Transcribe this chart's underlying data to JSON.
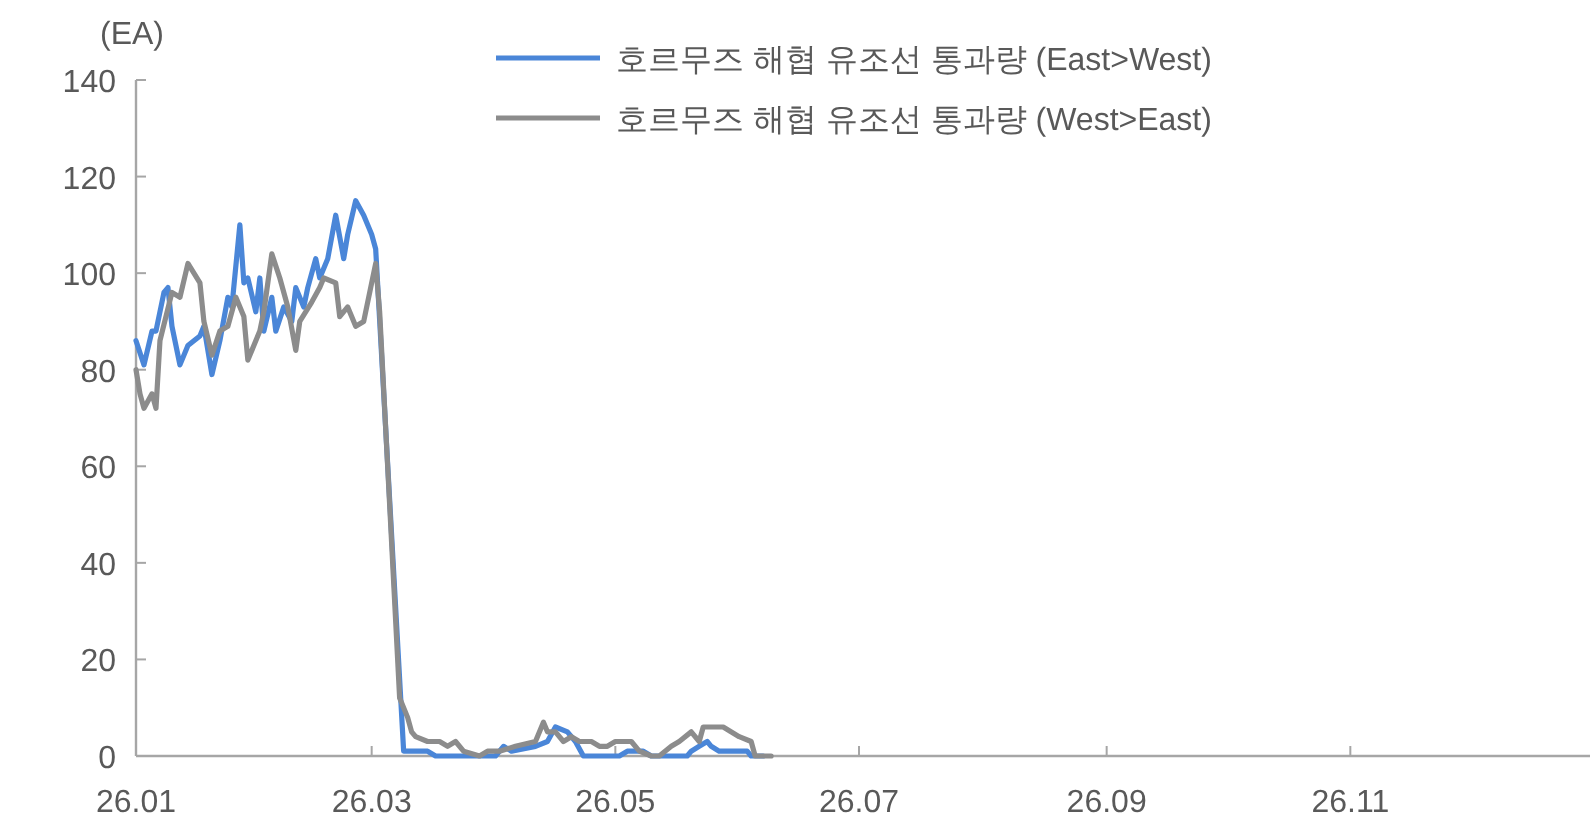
{
  "chart_data": {
    "type": "line",
    "ylabel": "(EA)",
    "xlim": [
      "--01-01",
      "--12-31"
    ],
    "xticks": [
      {
        "value": "--01-01",
        "label": "26.01"
      },
      {
        "value": "--03-01",
        "label": "26.03"
      },
      {
        "value": "--05-01",
        "label": "26.05"
      },
      {
        "value": "--07-01",
        "label": "26.07"
      },
      {
        "value": "--09-01",
        "label": "26.09"
      },
      {
        "value": "--11-01",
        "label": "26.11"
      }
    ],
    "ylim": [
      0,
      140
    ],
    "yticks": [
      0,
      20,
      40,
      60,
      80,
      100,
      120,
      140
    ],
    "grid": false,
    "legend": "top",
    "marker": "none",
    "line_style": "solid",
    "series": [
      {
        "name": "호르무즈 해협 유조선 통과량 (East>West)",
        "color": "#4a86d8",
        "x": [
          "--01-01",
          "--01-03",
          "--01-05",
          "--01-06",
          "--01-08",
          "--01-09",
          "--01-10",
          "--01-12",
          "--01-14",
          "--01-17",
          "--01-18",
          "--01-20",
          "--01-22",
          "--01-24",
          "--01-25",
          "--01-27",
          "--01-28",
          "--01-29",
          "--01-31",
          "--02-01",
          "--02-02",
          "--02-04",
          "--02-05",
          "--02-07",
          "--02-09",
          "--02-10",
          "--02-12",
          "--02-13",
          "--02-15",
          "--02-16",
          "--02-18",
          "--02-20",
          "--02-22",
          "--02-23",
          "--02-25",
          "--02-27",
          "--03-01",
          "--03-02",
          "--03-09",
          "--03-15",
          "--03-17",
          "--04-01",
          "--04-03",
          "--04-05",
          "--04-11",
          "--04-14",
          "--04-16",
          "--04-19",
          "--04-21",
          "--04-23",
          "--05-02",
          "--05-04",
          "--05-08",
          "--05-10",
          "--05-19",
          "--05-20",
          "--05-22",
          "--05-24",
          "--05-25",
          "--05-27",
          "--06-03",
          "--06-04",
          "--06-07"
        ],
        "values": [
          86,
          81,
          88,
          88,
          96,
          97,
          89,
          81,
          85,
          87,
          89,
          79,
          86,
          95,
          93,
          110,
          98,
          99,
          92,
          99,
          88,
          95,
          88,
          93,
          90,
          97,
          93,
          97,
          103,
          99,
          103,
          112,
          103,
          108,
          115,
          112,
          108,
          105,
          1,
          1,
          0,
          0,
          2,
          1,
          2,
          3,
          6,
          5,
          3,
          0,
          0,
          1,
          1,
          0,
          0,
          1,
          2,
          3,
          2,
          1,
          1,
          0,
          0
        ]
      },
      {
        "name": "호르무즈 해협 유조선 통과량 (West>East)",
        "color": "#8c8c8c",
        "x": [
          "--01-01",
          "--01-02",
          "--01-03",
          "--01-05",
          "--01-06",
          "--01-07",
          "--01-10",
          "--01-12",
          "--01-14",
          "--01-17",
          "--01-18",
          "--01-20",
          "--01-22",
          "--01-24",
          "--01-26",
          "--01-28",
          "--01-29",
          "--02-01",
          "--02-02",
          "--02-04",
          "--02-06",
          "--02-08",
          "--02-10",
          "--02-11",
          "--02-14",
          "--02-16",
          "--02-17",
          "--02-20",
          "--02-21",
          "--02-23",
          "--02-25",
          "--02-27",
          "--03-02",
          "--03-03",
          "--03-08",
          "--03-10",
          "--03-11",
          "--03-12",
          "--03-15",
          "--03-18",
          "--03-20",
          "--03-22",
          "--03-24",
          "--03-28",
          "--03-30",
          "--04-02",
          "--04-06",
          "--04-11",
          "--04-13",
          "--04-14",
          "--04-16",
          "--04-18",
          "--04-20",
          "--04-22",
          "--04-25",
          "--04-27",
          "--04-29",
          "--05-01",
          "--05-05",
          "--05-07",
          "--05-10",
          "--05-12",
          "--05-15",
          "--05-17",
          "--05-20",
          "--05-22",
          "--05-23",
          "--05-28",
          "--06-01",
          "--06-04",
          "--06-05",
          "--06-09"
        ],
        "values": [
          80,
          75,
          72,
          75,
          72,
          86,
          96,
          95,
          102,
          98,
          90,
          83,
          88,
          89,
          95,
          91,
          82,
          88,
          92,
          104,
          99,
          93,
          84,
          90,
          94,
          97,
          99,
          98,
          91,
          93,
          89,
          90,
          102,
          92,
          12,
          8,
          5,
          4,
          3,
          3,
          2,
          3,
          1,
          0,
          1,
          1,
          2,
          3,
          7,
          5,
          5,
          3,
          4,
          3,
          3,
          2,
          2,
          3,
          3,
          1,
          0,
          0,
          2,
          3,
          5,
          3,
          6,
          6,
          4,
          3,
          0,
          0
        ]
      }
    ]
  }
}
